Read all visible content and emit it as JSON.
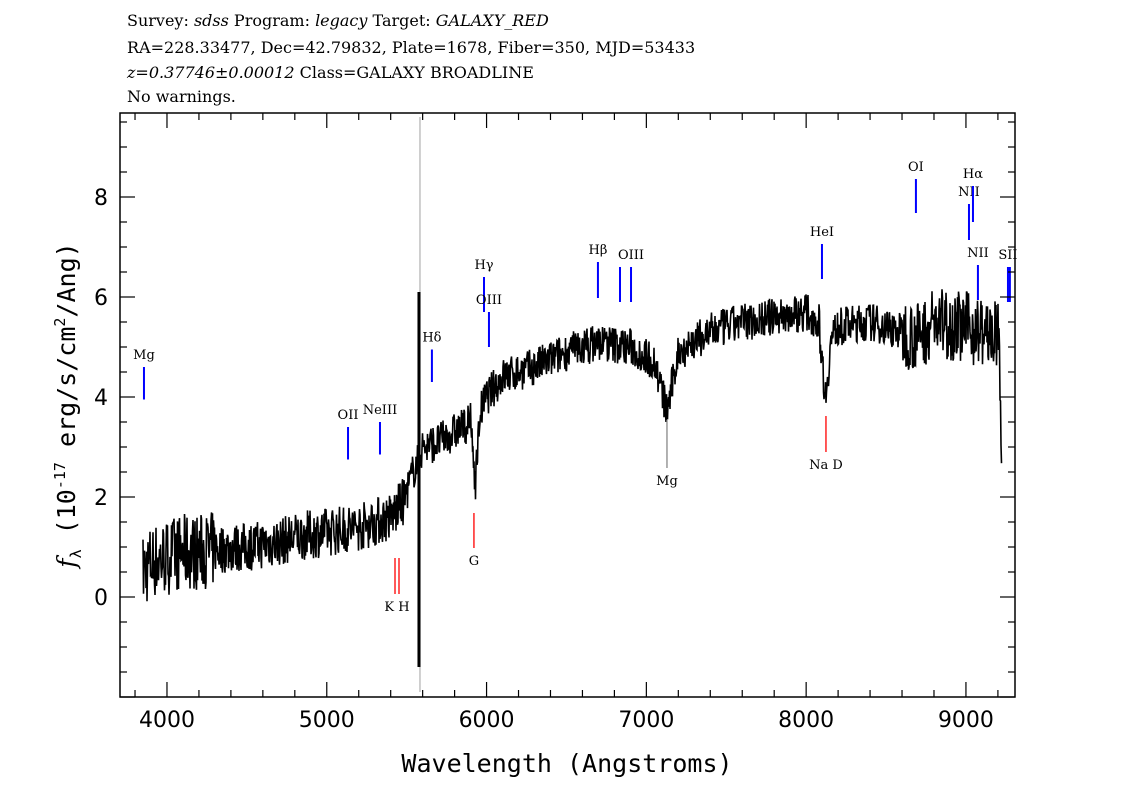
{
  "header": {
    "line1": {
      "survey_label": "Survey:",
      "survey": "sdss",
      "program_label": "Program:",
      "program": "legacy",
      "target_label": "Target:",
      "target": "GALAXY_RED"
    },
    "line2": "RA=228.33477, Dec=42.79832, Plate=1678, Fiber=350, MJD=53433",
    "line3": {
      "redshift": "z=0.37746±0.00012",
      "class": "Class=GALAXY BROADLINE"
    },
    "line4": "No warnings."
  },
  "chart_data": {
    "type": "line",
    "xlabel": "Wavelength (Angstroms)",
    "ylabel": {
      "symbol": "f",
      "sub": "λ",
      "pre": "(10",
      "exp": "-17",
      "mid": " erg/s/cm",
      "exp2": "2",
      "post": "/Ang)"
    },
    "xlim": [
      3706,
      9307
    ],
    "ylim": [
      -2,
      9.68
    ],
    "xticks": [
      4000,
      5000,
      6000,
      7000,
      8000,
      9000
    ],
    "yticks": [
      0,
      2,
      4,
      6,
      8
    ],
    "grid": false,
    "colors": {
      "flux": "#000000",
      "error": "#c0c0c0",
      "emission": "#0000ff",
      "absorption": "#ff0000"
    },
    "flux": {
      "x": [
        3850,
        3900,
        4000,
        4100,
        4200,
        4300,
        4500,
        4700,
        4800,
        5000,
        5200,
        5400,
        5480,
        5540,
        5600,
        5700,
        5800,
        5900,
        5930,
        5960,
        6000,
        6100,
        6200,
        6300,
        6500,
        6700,
        6900,
        7050,
        7130,
        7200,
        7400,
        7600,
        7800,
        8000,
        8080,
        8120,
        8160,
        8200,
        8400,
        8600,
        8700,
        8800,
        9000,
        9100,
        9200,
        9215,
        9225
      ],
      "y": [
        0.5,
        0.7,
        0.8,
        0.9,
        0.9,
        0.95,
        1.0,
        1.1,
        1.2,
        1.3,
        1.4,
        1.6,
        1.9,
        2.5,
        3.0,
        3.1,
        3.3,
        3.5,
        2.3,
        3.7,
        4.0,
        4.4,
        4.5,
        4.6,
        4.9,
        5.1,
        5.0,
        4.7,
        3.7,
        4.9,
        5.3,
        5.5,
        5.6,
        5.7,
        5.5,
        4.0,
        5.2,
        5.4,
        5.5,
        5.3,
        5.2,
        5.5,
        5.4,
        5.3,
        5.2,
        4.5,
        1.5
      ]
    },
    "sky_spike": {
      "x": 5577,
      "y_max": 6.1,
      "y_min": -1.4
    },
    "emission_lines": [
      {
        "label": "Mg",
        "x": 3856,
        "y0": 3.95,
        "y1": 4.6
      },
      {
        "label": "OII",
        "x": 5133,
        "y0": 2.75,
        "y1": 3.4
      },
      {
        "label": "NeIII",
        "x": 5333,
        "y0": 2.85,
        "y1": 3.5
      },
      {
        "label": "Hδ",
        "x": 5658,
        "y0": 4.3,
        "y1": 4.95
      },
      {
        "label": "Hγ",
        "x": 5984,
        "y0": 5.7,
        "y1": 6.4
      },
      {
        "label": "OIII",
        "x": 6015,
        "y0": 5.0,
        "y1": 5.7
      },
      {
        "label": "Hβ",
        "x": 6697,
        "y0": 5.98,
        "y1": 6.7
      },
      {
        "label": "",
        "x": 6835,
        "y0": 5.9,
        "y1": 6.6
      },
      {
        "label": "OIII",
        "x": 6904,
        "y0": 5.9,
        "y1": 6.6
      },
      {
        "label": "HeI",
        "x": 8099,
        "y0": 6.36,
        "y1": 7.06
      },
      {
        "label": "OI",
        "x": 8687,
        "y0": 7.68,
        "y1": 8.36
      },
      {
        "label": "NII",
        "x": 9019,
        "y0": 7.14,
        "y1": 7.86
      },
      {
        "label": "Hα",
        "x": 9044,
        "y0": 7.5,
        "y1": 8.22
      },
      {
        "label": "NII",
        "x": 9075,
        "y0": 5.94,
        "y1": 6.64
      },
      {
        "label": "SII",
        "x": 9263,
        "y0": 5.9,
        "y1": 6.6
      },
      {
        "label": "",
        "x": 9275,
        "y0": 5.9,
        "y1": 6.6
      }
    ],
    "absorption_lines": [
      {
        "label": "K H",
        "x": 5427,
        "x2": 5452,
        "y0": 0.06,
        "y1": 0.78
      },
      {
        "label": "G",
        "x": 5921,
        "y0": 0.98,
        "y1": 1.68
      },
      {
        "label": "Mg",
        "x": 7129,
        "y0": 2.58,
        "y1": 3.54
      },
      {
        "label": "Na D",
        "x": 8124,
        "y0": 2.9,
        "y1": 3.62
      }
    ]
  }
}
